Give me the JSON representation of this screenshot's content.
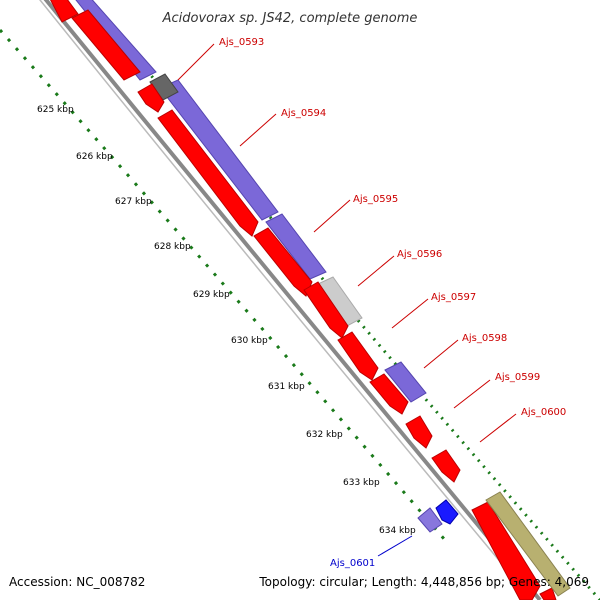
{
  "title": "Acidovorax sp. JS42, complete genome",
  "accession_text": "Accession: NC_008782",
  "summary_text": "Topology: circular; Length: 4,448,856 bp; Genes: 4,069",
  "colors": {
    "forward_cds": "#ff0000",
    "other_gene": "#7b68d8",
    "pseudo_grey": "#666666",
    "light_grey": "#cccccc",
    "blue_gene": "#1a1aff",
    "olive_gene": "#b8b070",
    "tick_green": "#1a7a1a",
    "label_red": "#cc0000",
    "label_blue": "#0000cc"
  },
  "tick_labels": [
    {
      "text": "625 kbp"
    },
    {
      "text": "626 kbp"
    },
    {
      "text": "627 kbp"
    },
    {
      "text": "628 kbp"
    },
    {
      "text": "629 kbp"
    },
    {
      "text": "630 kbp"
    },
    {
      "text": "631 kbp"
    },
    {
      "text": "632 kbp"
    },
    {
      "text": "633 kbp"
    },
    {
      "text": "634 kbp"
    }
  ],
  "gene_labels": [
    {
      "text": "Ajs_0593",
      "color": "#cc0000"
    },
    {
      "text": "Ajs_0594",
      "color": "#cc0000"
    },
    {
      "text": "Ajs_0595",
      "color": "#cc0000"
    },
    {
      "text": "Ajs_0596",
      "color": "#cc0000"
    },
    {
      "text": "Ajs_0597",
      "color": "#cc0000"
    },
    {
      "text": "Ajs_0598",
      "color": "#cc0000"
    },
    {
      "text": "Ajs_0599",
      "color": "#cc0000"
    },
    {
      "text": "Ajs_0600",
      "color": "#cc0000"
    },
    {
      "text": "Ajs_0601",
      "color": "#0000cc"
    }
  ]
}
